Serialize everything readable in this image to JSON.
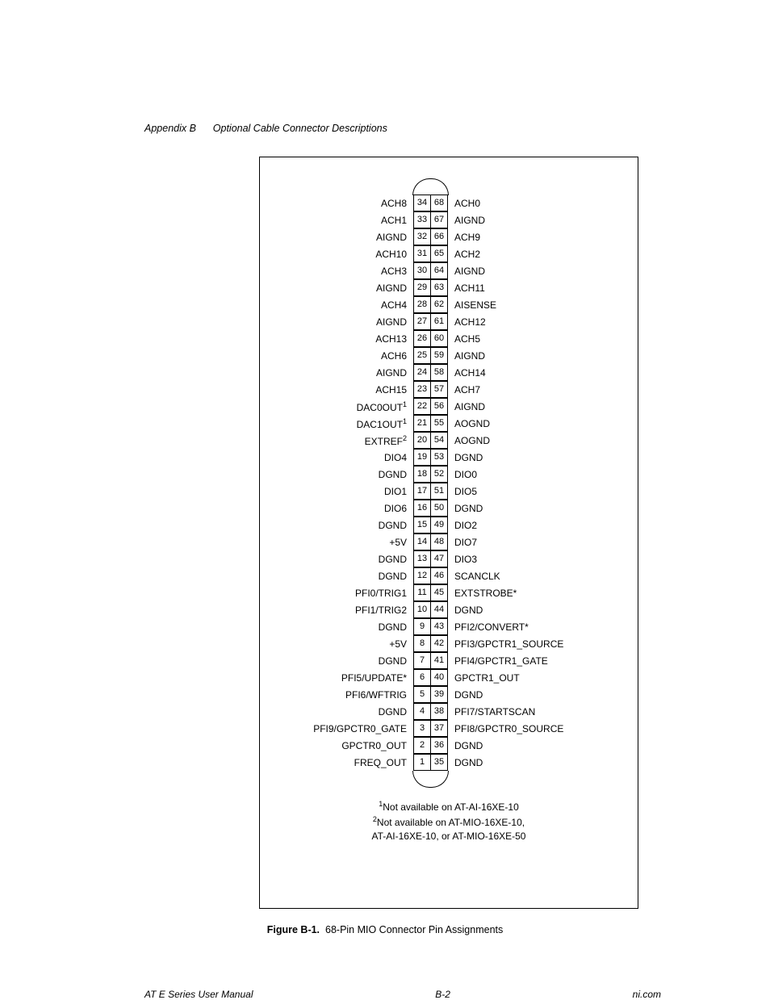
{
  "header": {
    "appendix": "Appendix B",
    "title": "Optional Cable Connector Descriptions"
  },
  "pins": [
    {
      "left": "ACH8",
      "l": 34,
      "r": 68,
      "right": "ACH0"
    },
    {
      "left": "ACH1",
      "l": 33,
      "r": 67,
      "right": "AIGND"
    },
    {
      "left": "AIGND",
      "l": 32,
      "r": 66,
      "right": "ACH9"
    },
    {
      "left": "ACH10",
      "l": 31,
      "r": 65,
      "right": "ACH2"
    },
    {
      "left": "ACH3",
      "l": 30,
      "r": 64,
      "right": "AIGND"
    },
    {
      "left": "AIGND",
      "l": 29,
      "r": 63,
      "right": "ACH11"
    },
    {
      "left": "ACH4",
      "l": 28,
      "r": 62,
      "right": "AISENSE"
    },
    {
      "left": "AIGND",
      "l": 27,
      "r": 61,
      "right": "ACH12"
    },
    {
      "left": "ACH13",
      "l": 26,
      "r": 60,
      "right": "ACH5"
    },
    {
      "left": "ACH6",
      "l": 25,
      "r": 59,
      "right": "AIGND"
    },
    {
      "left": "AIGND",
      "l": 24,
      "r": 58,
      "right": "ACH14"
    },
    {
      "left": "ACH15",
      "l": 23,
      "r": 57,
      "right": "ACH7"
    },
    {
      "left": "DAC0OUT",
      "lsup": "1",
      "l": 22,
      "r": 56,
      "right": "AIGND"
    },
    {
      "left": "DAC1OUT",
      "lsup": "1",
      "l": 21,
      "r": 55,
      "right": "AOGND"
    },
    {
      "left": "EXTREF",
      "lsup": "2",
      "l": 20,
      "r": 54,
      "right": "AOGND"
    },
    {
      "left": "DIO4",
      "l": 19,
      "r": 53,
      "right": "DGND"
    },
    {
      "left": "DGND",
      "l": 18,
      "r": 52,
      "right": "DIO0"
    },
    {
      "left": "DIO1",
      "l": 17,
      "r": 51,
      "right": "DIO5"
    },
    {
      "left": "DIO6",
      "l": 16,
      "r": 50,
      "right": "DGND"
    },
    {
      "left": "DGND",
      "l": 15,
      "r": 49,
      "right": "DIO2"
    },
    {
      "left": "+5V",
      "l": 14,
      "r": 48,
      "right": "DIO7"
    },
    {
      "left": "DGND",
      "l": 13,
      "r": 47,
      "right": "DIO3"
    },
    {
      "left": "DGND",
      "l": 12,
      "r": 46,
      "right": "SCANCLK"
    },
    {
      "left": "PFI0/TRIG1",
      "l": 11,
      "r": 45,
      "right": "EXTSTROBE*"
    },
    {
      "left": "PFI1/TRIG2",
      "l": 10,
      "r": 44,
      "right": "DGND"
    },
    {
      "left": "DGND",
      "l": 9,
      "r": 43,
      "right": "PFI2/CONVERT*"
    },
    {
      "left": "+5V",
      "l": 8,
      "r": 42,
      "right": "PFI3/GPCTR1_SOURCE"
    },
    {
      "left": "DGND",
      "l": 7,
      "r": 41,
      "right": "PFI4/GPCTR1_GATE"
    },
    {
      "left": "PFI5/UPDATE*",
      "l": 6,
      "r": 40,
      "right": "GPCTR1_OUT"
    },
    {
      "left": "PFI6/WFTRIG",
      "l": 5,
      "r": 39,
      "right": "DGND"
    },
    {
      "left": "DGND",
      "l": 4,
      "r": 38,
      "right": "PFI7/STARTSCAN"
    },
    {
      "left": "PFI9/GPCTR0_GATE",
      "l": 3,
      "r": 37,
      "right": "PFI8/GPCTR0_SOURCE"
    },
    {
      "left": "GPCTR0_OUT",
      "l": 2,
      "r": 36,
      "right": "DGND"
    },
    {
      "left": "FREQ_OUT",
      "l": 1,
      "r": 35,
      "right": "DGND"
    }
  ],
  "footnotes": {
    "n1_sup": "1",
    "n1_text": "Not available on AT-AI-16XE-10",
    "n2_sup": "2",
    "n2_text": "Not available on AT-MIO-16XE-10,",
    "n2_cont": "AT-AI-16XE-10, or AT-MIO-16XE-50"
  },
  "caption": {
    "label": "Figure B-1.",
    "text": "68-Pin MIO Connector Pin Assignments"
  },
  "footer": {
    "left": "AT E Series User Manual",
    "center": "B-2",
    "right": "ni.com"
  }
}
